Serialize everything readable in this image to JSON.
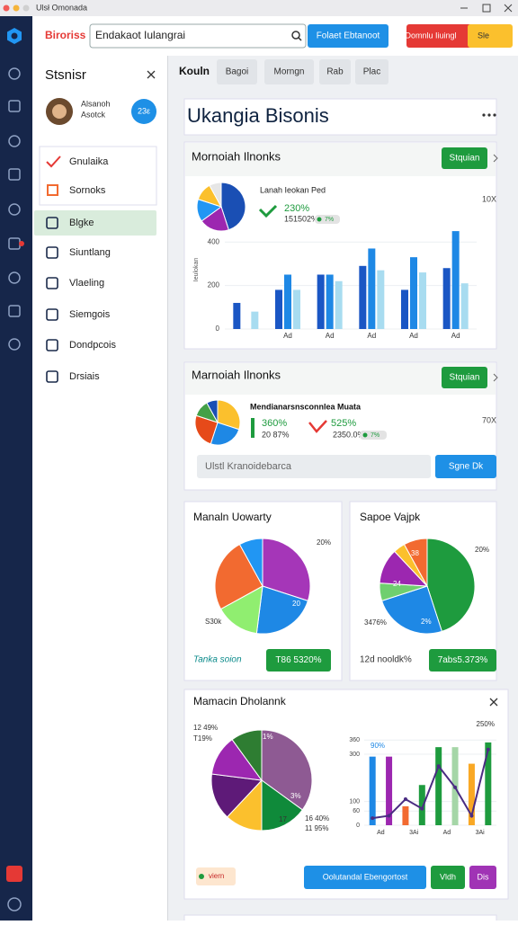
{
  "window": {
    "title": "Ulsł Omonada"
  },
  "topbar": {
    "brand": "Biroriss",
    "search": "Endakaot Iulangrai",
    "primary_button": "Folaet Ebtanoot",
    "alert_button": "Domnlu Iiuingl",
    "alert_badge": "Sle"
  },
  "sidebar": {
    "title": "Stsnisr",
    "profile": {
      "name": "Alsanoh",
      "sub": "Asotck",
      "badge": "23ε"
    },
    "menu": [
      "Gnulaika",
      "Sornoks"
    ],
    "nav": [
      "Blgke",
      "Siuntlang",
      "Vlaeling",
      "Siemgois",
      "Dondpcois",
      "Drsiais"
    ]
  },
  "tabs": [
    "Kouln",
    "Bagoi",
    "Morngn",
    "Rab",
    "Plac"
  ],
  "header": {
    "title": "Ukangia Bisonis"
  },
  "card1": {
    "title": "Mornoiah Ilnonks",
    "button": "Stquian",
    "pie": {
      "values": [
        45,
        20,
        15,
        12,
        8
      ],
      "colors": [
        "#1a4fb4",
        "#9c27b0",
        "#2196f3",
        "#fbc02d",
        "#e6e6e6"
      ]
    },
    "legend_title": "Lanah Ieokan Ped",
    "stat": "230%",
    "stat_sub": "151502%",
    "stat_badge": "7%",
    "corner": "10X",
    "chart": {
      "y_label": "Ieulokan",
      "ylim": [
        0,
        500
      ],
      "yticks": [
        0,
        200,
        400
      ],
      "categories": [
        null,
        "Ad",
        "Ad",
        "Ad",
        "Ad",
        "Ad"
      ],
      "series": [
        {
          "color": "#1a56c4",
          "values": [
            120,
            180,
            250,
            290,
            180,
            280
          ]
        },
        {
          "color": "#1e88e5",
          "values": [
            null,
            250,
            250,
            370,
            330,
            450
          ]
        },
        {
          "color": "#a8dcf0",
          "values": [
            80,
            180,
            220,
            270,
            260,
            210
          ]
        }
      ]
    }
  },
  "card2": {
    "title": "Marnoiah Ilnonks",
    "button": "Stquian",
    "pie": {
      "values": [
        30,
        25,
        25,
        12,
        8
      ],
      "colors": [
        "#fbc02d",
        "#1e88e5",
        "#e64a19",
        "#43a047",
        "#1a4fb4"
      ]
    },
    "legend_title": "Mendianarsnsconnlea Muata",
    "stat1": "360%",
    "stat1_sub": "20 87%",
    "stat2": "525%",
    "stat2_sub": "2350.0%",
    "stat2_badge": "7%",
    "corner": "70X",
    "input": "Ulstl Kranoidebarca",
    "submit": "Sgne Dk"
  },
  "card3": {
    "title": "Manaln Uowarty",
    "pie": {
      "values": [
        30,
        22,
        15,
        25,
        8
      ],
      "colors": [
        "#a536b8",
        "#1e88e5",
        "#90ee70",
        "#f26a30",
        "#2196f3"
      ]
    },
    "labels": [
      "20%",
      "20",
      "S30k"
    ],
    "footer": "Tanka soion",
    "button": "T86 5320%"
  },
  "card4": {
    "title": "Sapoe Vajpk",
    "pie": {
      "values": [
        45,
        25,
        6,
        12,
        4,
        8
      ],
      "colors": [
        "#1e9b3e",
        "#1e88e5",
        "#6fcf6f",
        "#9c27b0",
        "#fbc02d",
        "#f26a30"
      ]
    },
    "labels": [
      "20%",
      "38",
      "24",
      "3476%",
      "2%"
    ],
    "footer": "12d nooldk%",
    "button": "7abs5.373%"
  },
  "card5": {
    "title": "Mamacin Dholannk",
    "pie": {
      "values": [
        35,
        15,
        12,
        15,
        13,
        10
      ],
      "colors": [
        "#8e5a93",
        "#0f8a3a",
        "#fbc02d",
        "#5e1a78",
        "#9c27b0",
        "#2e7d32"
      ]
    },
    "labels": [
      "12 49%",
      "T19%",
      "1%",
      "3%",
      "17",
      "16 40%",
      "11 95%"
    ],
    "chart": {
      "ylim": [
        0,
        380
      ],
      "yticks": [
        0,
        60,
        100,
        300,
        360
      ],
      "categories": [
        "Ad",
        "3Ai",
        "Ad",
        "3Ai"
      ],
      "bar_values": [
        290,
        290,
        80,
        170,
        330,
        330,
        260,
        350
      ],
      "bar_colors": [
        "#1e88e5",
        "#9c27b0",
        "#f26a30",
        "#1e9b3e",
        "#1e9b3e",
        "#a5d6a7",
        "#f9a825",
        "#1e9b3e"
      ],
      "line_values": [
        30,
        40,
        110,
        70,
        250,
        160,
        40,
        320
      ],
      "line_color": "#4a2c82",
      "top_labels": [
        "90%",
        "250%"
      ]
    },
    "badge": "viern",
    "buttons": [
      "Oolutandal Ebengortost",
      "Vldh",
      "Dis"
    ]
  }
}
